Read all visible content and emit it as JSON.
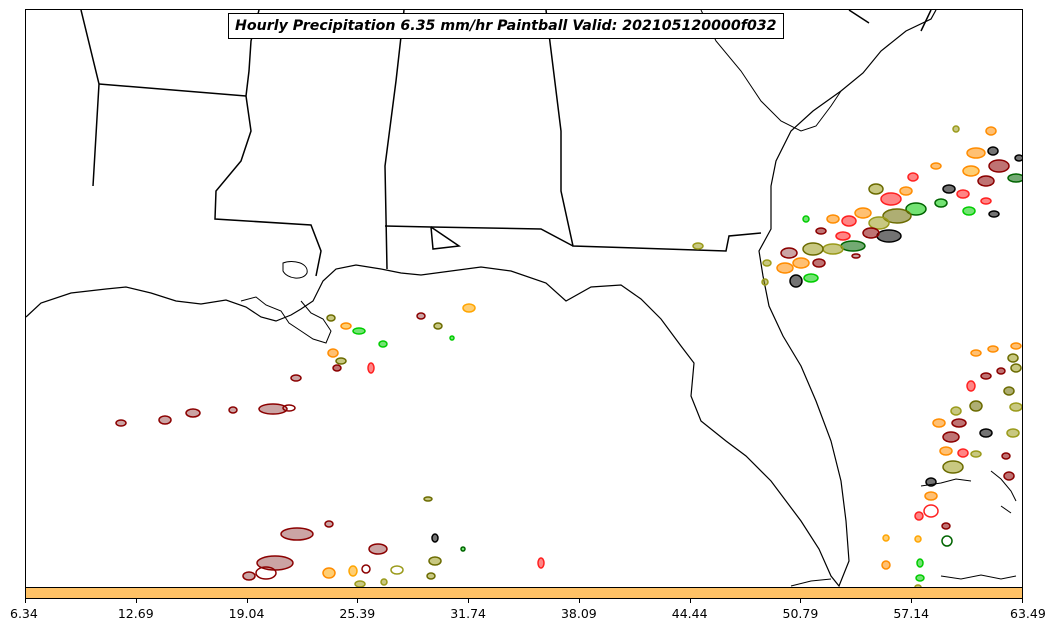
{
  "title": "Hourly Precipitation 6.35 mm/hr Paintball Valid: 202105120000f032",
  "colorbar": {
    "color": "#ffc266",
    "ticks": [
      "6.34",
      "12.69",
      "19.04",
      "25.39",
      "31.74",
      "38.09",
      "44.44",
      "50.79",
      "57.14",
      "63.49"
    ]
  },
  "paintball_colors": [
    "#8b0000",
    "#a05a5a",
    "#ff8c00",
    "#ffa500",
    "#00cc00",
    "#006400",
    "#9a9a1a",
    "#6b6b00",
    "#ff2020",
    "#000000"
  ],
  "map_features": [
    "coastline-gulf-of-mexico",
    "florida-peninsula",
    "state-borders",
    "atlantic-coast"
  ]
}
